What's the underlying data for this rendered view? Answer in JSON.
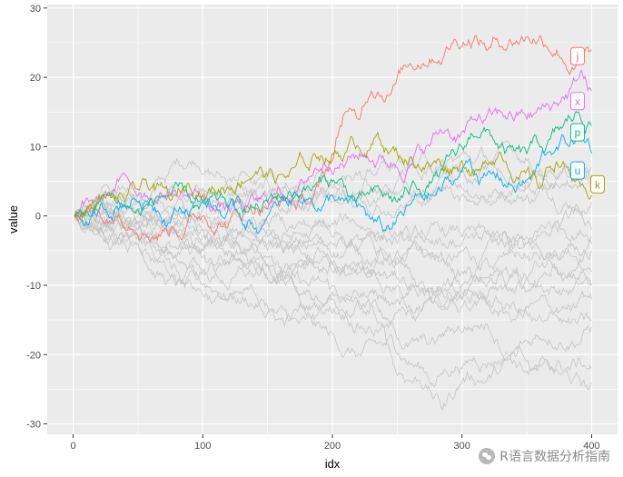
{
  "chart_data": {
    "type": "line",
    "title": "",
    "xlabel": "idx",
    "ylabel": "value",
    "xlim": [
      -20,
      420
    ],
    "ylim": [
      -31.5,
      30.5
    ],
    "x_ticks": [
      0,
      100,
      200,
      300,
      400
    ],
    "y_ticks": [
      -30,
      -20,
      -10,
      0,
      10,
      20,
      30
    ],
    "grid": true,
    "background": "#ebebeb",
    "n_points": 400,
    "legend": "none",
    "highlighted_series": [
      {
        "name": "j",
        "color": "#F8766D",
        "label_y": 23,
        "path": [
          [
            1,
            0
          ],
          [
            25,
            -1
          ],
          [
            50,
            -3
          ],
          [
            75,
            -2
          ],
          [
            100,
            0
          ],
          [
            125,
            1
          ],
          [
            150,
            1
          ],
          [
            175,
            3
          ],
          [
            190,
            5
          ],
          [
            200,
            8
          ],
          [
            210,
            15
          ],
          [
            220,
            14
          ],
          [
            230,
            18
          ],
          [
            250,
            20
          ],
          [
            270,
            22
          ],
          [
            290,
            24
          ],
          [
            310,
            26
          ],
          [
            320,
            24
          ],
          [
            340,
            25
          ],
          [
            360,
            26
          ],
          [
            375,
            23
          ],
          [
            390,
            22
          ],
          [
            400,
            24
          ]
        ]
      },
      {
        "name": "x",
        "color": "#E76BF3",
        "label_y": 16.5,
        "path": [
          [
            1,
            0
          ],
          [
            20,
            3
          ],
          [
            35,
            5
          ],
          [
            50,
            3
          ],
          [
            75,
            3
          ],
          [
            100,
            3
          ],
          [
            125,
            2
          ],
          [
            150,
            2
          ],
          [
            175,
            5
          ],
          [
            200,
            6
          ],
          [
            225,
            9
          ],
          [
            250,
            7
          ],
          [
            270,
            9
          ],
          [
            290,
            12
          ],
          [
            310,
            14
          ],
          [
            330,
            15
          ],
          [
            350,
            14
          ],
          [
            370,
            16
          ],
          [
            385,
            19
          ],
          [
            392,
            21
          ],
          [
            400,
            18
          ]
        ]
      },
      {
        "name": "p",
        "color": "#00BF7D",
        "label_y": 12,
        "path": [
          [
            1,
            0
          ],
          [
            25,
            3
          ],
          [
            50,
            1
          ],
          [
            75,
            3
          ],
          [
            100,
            2
          ],
          [
            125,
            2
          ],
          [
            150,
            2
          ],
          [
            175,
            3
          ],
          [
            200,
            5
          ],
          [
            225,
            3
          ],
          [
            250,
            2
          ],
          [
            275,
            5
          ],
          [
            300,
            10
          ],
          [
            315,
            12
          ],
          [
            330,
            10
          ],
          [
            350,
            9
          ],
          [
            365,
            10
          ],
          [
            380,
            14
          ],
          [
            390,
            15
          ],
          [
            400,
            13
          ]
        ]
      },
      {
        "name": "u",
        "color": "#00B0F6",
        "label_y": 6.5,
        "path": [
          [
            1,
            0
          ],
          [
            25,
            1
          ],
          [
            50,
            2
          ],
          [
            75,
            -1
          ],
          [
            100,
            2
          ],
          [
            125,
            1
          ],
          [
            150,
            0
          ],
          [
            175,
            2
          ],
          [
            200,
            3
          ],
          [
            225,
            1
          ],
          [
            240,
            -2
          ],
          [
            250,
            0
          ],
          [
            275,
            3
          ],
          [
            290,
            5
          ],
          [
            305,
            8
          ],
          [
            325,
            6
          ],
          [
            340,
            4
          ],
          [
            355,
            6
          ],
          [
            370,
            9
          ],
          [
            385,
            11
          ],
          [
            400,
            9
          ]
        ]
      },
      {
        "name": "k",
        "color": "#A3A500",
        "label_y": 4.5,
        "path": [
          [
            1,
            0
          ],
          [
            20,
            3
          ],
          [
            40,
            2
          ],
          [
            60,
            4
          ],
          [
            80,
            3
          ],
          [
            100,
            3
          ],
          [
            120,
            4
          ],
          [
            140,
            6
          ],
          [
            160,
            6
          ],
          [
            180,
            7
          ],
          [
            190,
            8
          ],
          [
            200,
            9
          ],
          [
            220,
            10
          ],
          [
            235,
            12
          ],
          [
            250,
            9
          ],
          [
            270,
            7
          ],
          [
            290,
            6
          ],
          [
            300,
            8
          ],
          [
            315,
            7
          ],
          [
            330,
            9
          ],
          [
            345,
            6
          ],
          [
            360,
            4
          ],
          [
            375,
            7
          ],
          [
            385,
            5
          ],
          [
            395,
            4
          ],
          [
            400,
            3
          ]
        ]
      }
    ],
    "background_series_color": "#c4c4c4",
    "background_series": [
      {
        "path": [
          [
            1,
            0
          ],
          [
            50,
            -1
          ],
          [
            100,
            -3
          ],
          [
            150,
            -2
          ],
          [
            200,
            -4
          ],
          [
            250,
            -3
          ],
          [
            300,
            -5
          ],
          [
            350,
            -4
          ],
          [
            400,
            -5
          ]
        ]
      },
      {
        "path": [
          [
            1,
            0
          ],
          [
            50,
            2
          ],
          [
            100,
            6
          ],
          [
            150,
            5
          ],
          [
            200,
            4
          ],
          [
            250,
            3
          ],
          [
            300,
            4
          ],
          [
            350,
            3
          ],
          [
            400,
            2
          ]
        ]
      },
      {
        "path": [
          [
            1,
            0
          ],
          [
            50,
            -3
          ],
          [
            100,
            -8
          ],
          [
            150,
            -6
          ],
          [
            200,
            -7
          ],
          [
            250,
            -10
          ],
          [
            300,
            -12
          ],
          [
            350,
            -9
          ],
          [
            400,
            -10
          ]
        ]
      },
      {
        "path": [
          [
            1,
            0
          ],
          [
            50,
            -4
          ],
          [
            100,
            -10
          ],
          [
            150,
            -13
          ],
          [
            200,
            -17
          ],
          [
            250,
            -20
          ],
          [
            280,
            -24
          ],
          [
            300,
            -22
          ],
          [
            350,
            -21
          ],
          [
            400,
            -24
          ]
        ]
      },
      {
        "path": [
          [
            1,
            0
          ],
          [
            50,
            -2
          ],
          [
            100,
            -5
          ],
          [
            150,
            -7
          ],
          [
            200,
            -10
          ],
          [
            230,
            -13
          ],
          [
            250,
            -23
          ],
          [
            270,
            -25
          ],
          [
            285,
            -28
          ],
          [
            300,
            -24
          ],
          [
            350,
            -18
          ],
          [
            400,
            -16
          ]
        ]
      },
      {
        "path": [
          [
            1,
            0
          ],
          [
            50,
            1
          ],
          [
            100,
            -2
          ],
          [
            150,
            -4
          ],
          [
            200,
            -6
          ],
          [
            250,
            -5
          ],
          [
            300,
            -8
          ],
          [
            350,
            -6
          ],
          [
            400,
            -3
          ]
        ]
      },
      {
        "path": [
          [
            1,
            0
          ],
          [
            50,
            -1
          ],
          [
            100,
            -4
          ],
          [
            150,
            -3
          ],
          [
            200,
            -1
          ],
          [
            250,
            -4
          ],
          [
            300,
            -3
          ],
          [
            350,
            -4
          ],
          [
            400,
            -4
          ]
        ]
      },
      {
        "path": [
          [
            1,
            0
          ],
          [
            40,
            -3
          ],
          [
            80,
            -8
          ],
          [
            120,
            -12
          ],
          [
            160,
            -15
          ],
          [
            200,
            -14
          ],
          [
            240,
            -16
          ],
          [
            280,
            -18
          ],
          [
            320,
            -16
          ],
          [
            360,
            -21
          ],
          [
            400,
            -22
          ]
        ]
      },
      {
        "path": [
          [
            1,
            0
          ],
          [
            50,
            -4
          ],
          [
            100,
            -8
          ],
          [
            150,
            -7
          ],
          [
            200,
            -12
          ],
          [
            250,
            -14
          ],
          [
            300,
            -12
          ],
          [
            350,
            -13
          ],
          [
            400,
            -15
          ]
        ]
      },
      {
        "path": [
          [
            1,
            0
          ],
          [
            50,
            2
          ],
          [
            100,
            4
          ],
          [
            150,
            6
          ],
          [
            200,
            5
          ],
          [
            250,
            8
          ],
          [
            300,
            9
          ],
          [
            350,
            8
          ],
          [
            400,
            6
          ]
        ]
      },
      {
        "path": [
          [
            1,
            0
          ],
          [
            50,
            -1
          ],
          [
            100,
            1
          ],
          [
            150,
            3
          ],
          [
            200,
            2
          ],
          [
            250,
            1
          ],
          [
            300,
            3
          ],
          [
            350,
            5
          ],
          [
            400,
            7
          ]
        ]
      },
      {
        "path": [
          [
            1,
            0
          ],
          [
            50,
            -3
          ],
          [
            100,
            -6
          ],
          [
            150,
            -9
          ],
          [
            200,
            -7
          ],
          [
            250,
            -9
          ],
          [
            300,
            -11
          ],
          [
            350,
            -14
          ],
          [
            400,
            -12
          ]
        ]
      },
      {
        "path": [
          [
            1,
            0
          ],
          [
            50,
            0
          ],
          [
            100,
            -2
          ],
          [
            150,
            -1
          ],
          [
            200,
            -3
          ],
          [
            250,
            -6
          ],
          [
            300,
            -4
          ],
          [
            350,
            -3
          ],
          [
            400,
            -2
          ]
        ]
      },
      {
        "path": [
          [
            1,
            0
          ],
          [
            50,
            -2
          ],
          [
            100,
            -1
          ],
          [
            150,
            -5
          ],
          [
            200,
            -8
          ],
          [
            250,
            -7
          ],
          [
            300,
            -10
          ],
          [
            350,
            -9
          ],
          [
            400,
            -8
          ]
        ]
      },
      {
        "path": [
          [
            1,
            0
          ],
          [
            50,
            3
          ],
          [
            100,
            2
          ],
          [
            150,
            1
          ],
          [
            200,
            3
          ],
          [
            250,
            5
          ],
          [
            300,
            7
          ],
          [
            350,
            4
          ],
          [
            400,
            5
          ]
        ]
      },
      {
        "path": [
          [
            1,
            0
          ],
          [
            50,
            -1
          ],
          [
            100,
            -5
          ],
          [
            150,
            -9
          ],
          [
            200,
            -11
          ],
          [
            250,
            -12
          ],
          [
            300,
            -13
          ],
          [
            350,
            -11
          ],
          [
            400,
            -10
          ]
        ]
      }
    ]
  },
  "watermark": {
    "text": "R语言数据分析指南"
  }
}
